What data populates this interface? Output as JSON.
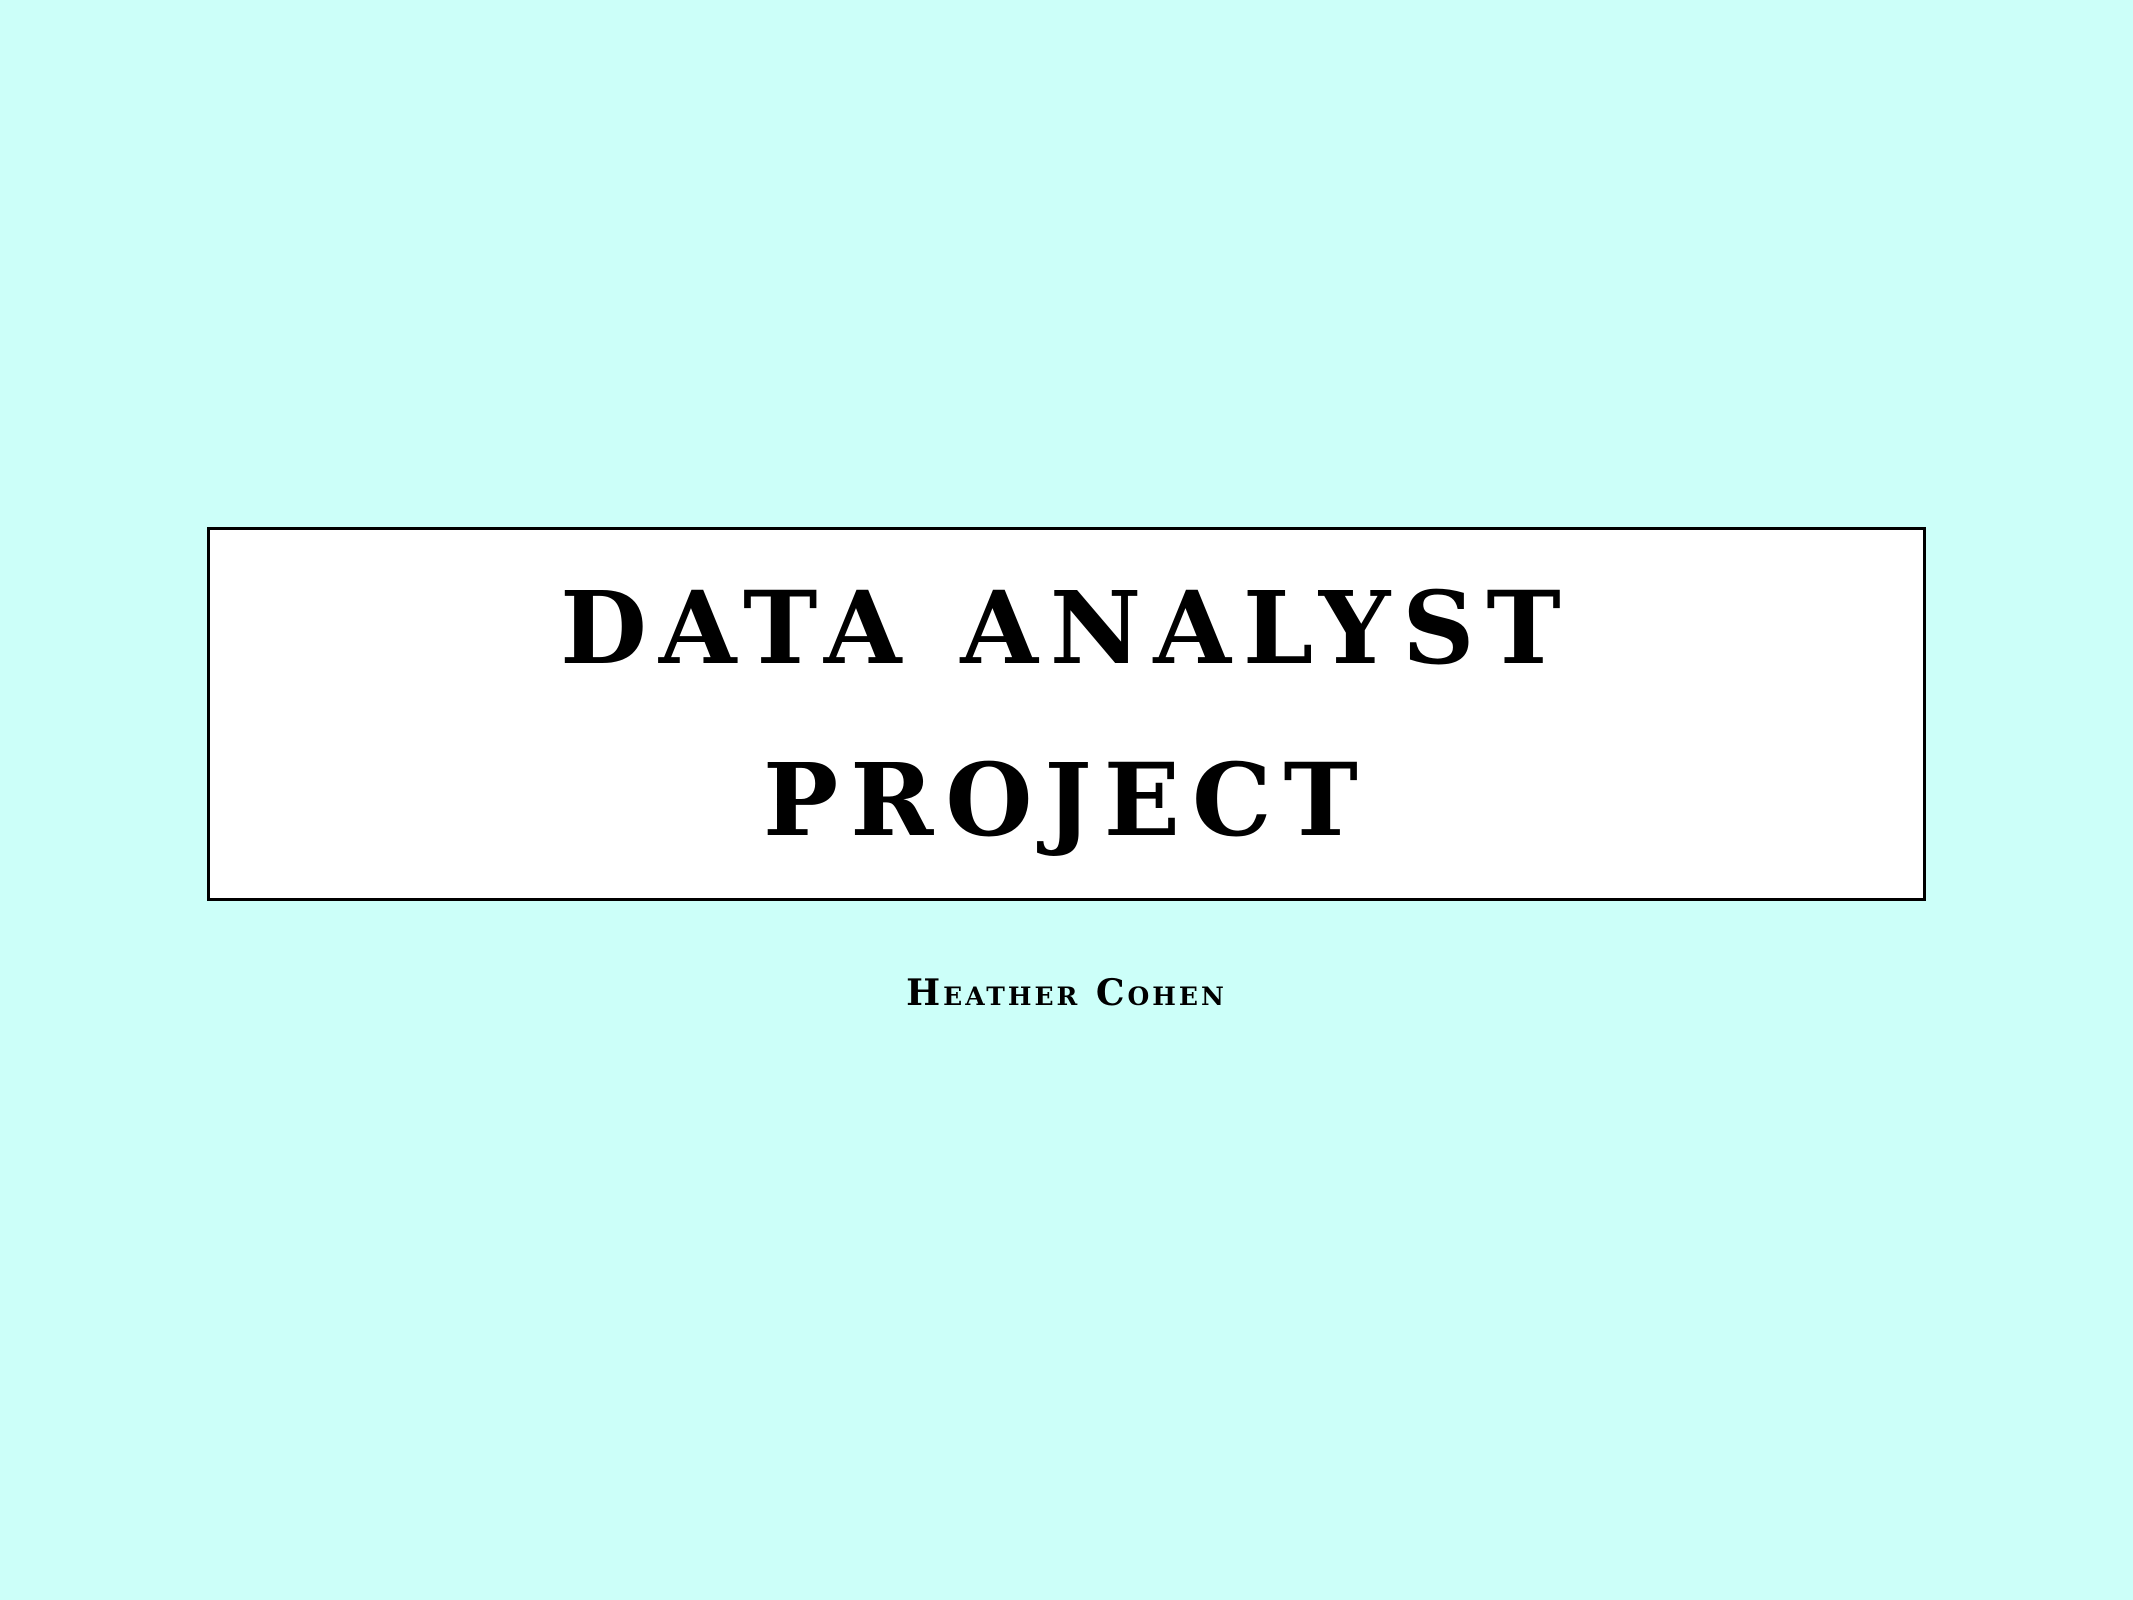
{
  "slide": {
    "background": "#ccfff9",
    "title_box_background": "#ffffff",
    "title_lines": [
      "DATA ANALYST",
      "PROJECT"
    ],
    "author": "Heather Cohen"
  }
}
